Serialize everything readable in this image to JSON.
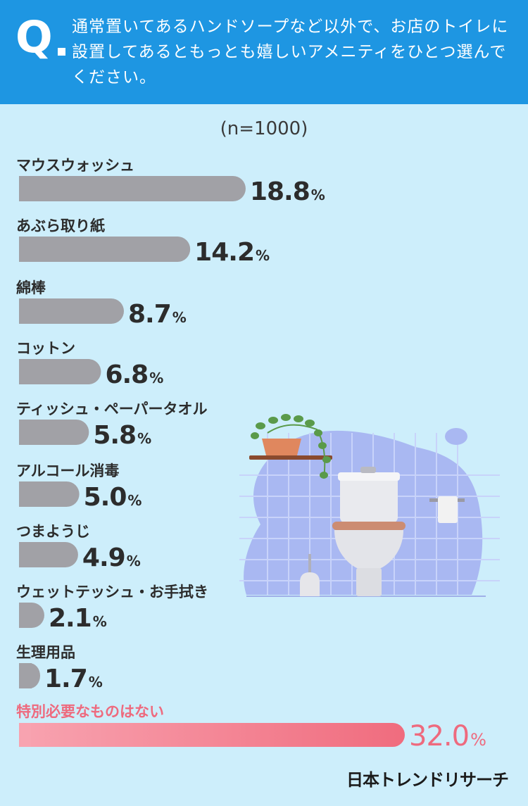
{
  "question": {
    "mark": "Q",
    "text": "通常置いてあるハンドソープなど以外で、お店のトイレに設置してあるともっとも嬉しいアメニティをひとつ選んでください。"
  },
  "n_label": "(n=1000)",
  "brand": "日本トレンドリサーチ",
  "colors": {
    "header": "#1e96e2",
    "background": "#cdeefb",
    "bar_gray": "#a1a1a6",
    "bar_pink_start": "#f8a3b0",
    "bar_pink_end": "#f06c7e",
    "highlight_text": "#ee6a7e"
  },
  "chart_data": {
    "type": "bar",
    "orientation": "horizontal",
    "unit": "%",
    "categories": [
      "マウスウォッシュ",
      "あぶら取り紙",
      "綿棒",
      "コットン",
      "ティッシュ・ペーパータオル",
      "アルコール消毒",
      "つまようじ",
      "ウェットテッシュ・お手拭き",
      "生理用品",
      "特別必要なものはない"
    ],
    "values": [
      18.8,
      14.2,
      8.7,
      6.8,
      5.8,
      5.0,
      4.9,
      2.1,
      1.7,
      32.0
    ],
    "highlight_index": 9,
    "xlim": [
      0,
      32.0
    ]
  }
}
